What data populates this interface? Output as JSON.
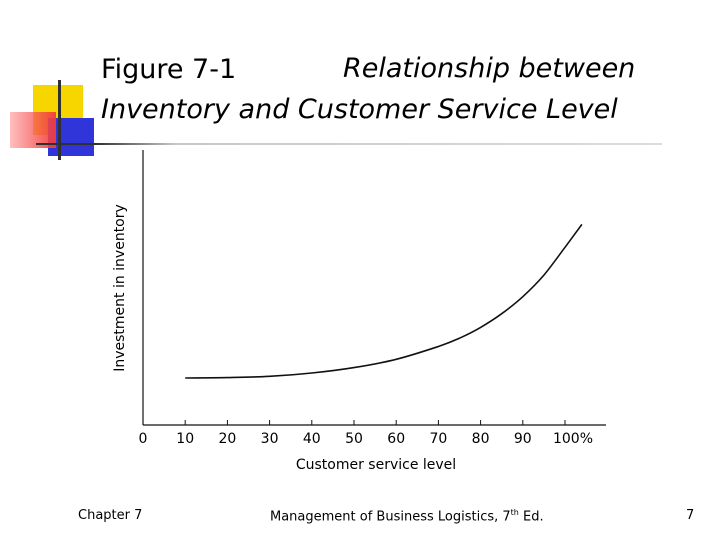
{
  "slide": {
    "title_part1": "Figure 7-1",
    "title_part2": "Relationship between",
    "title_line2": "Inventory and Customer Service Level",
    "footer_left": "Chapter 7",
    "footer_center_main": "Management of Business Logistics, 7",
    "footer_center_sup": "th",
    "footer_center_end": " Ed.",
    "page_number": "7"
  },
  "colors": {
    "accent_yellow": "#f7d600",
    "accent_blue": "#2f35d8",
    "accent_red": "#f03c3c"
  },
  "chart_data": {
    "type": "line",
    "xlabel": "Customer service level",
    "ylabel": "Investment in inventory",
    "x_ticks": [
      "0",
      "10",
      "20",
      "30",
      "40",
      "50",
      "60",
      "70",
      "80",
      "90",
      "100%"
    ],
    "xlim": [
      0,
      100
    ],
    "grid": false,
    "y_tick_labels": false,
    "series": [
      {
        "x": [
          10,
          20,
          30,
          40,
          50,
          60,
          70,
          75,
          80,
          85,
          90,
          95,
          100,
          104
        ],
        "y": [
          0.0,
          0.1,
          0.4,
          1.2,
          2.5,
          4.5,
          7.6,
          9.6,
          12.2,
          15.5,
          19.6,
          24.8,
          31.5,
          37.0
        ]
      }
    ]
  }
}
